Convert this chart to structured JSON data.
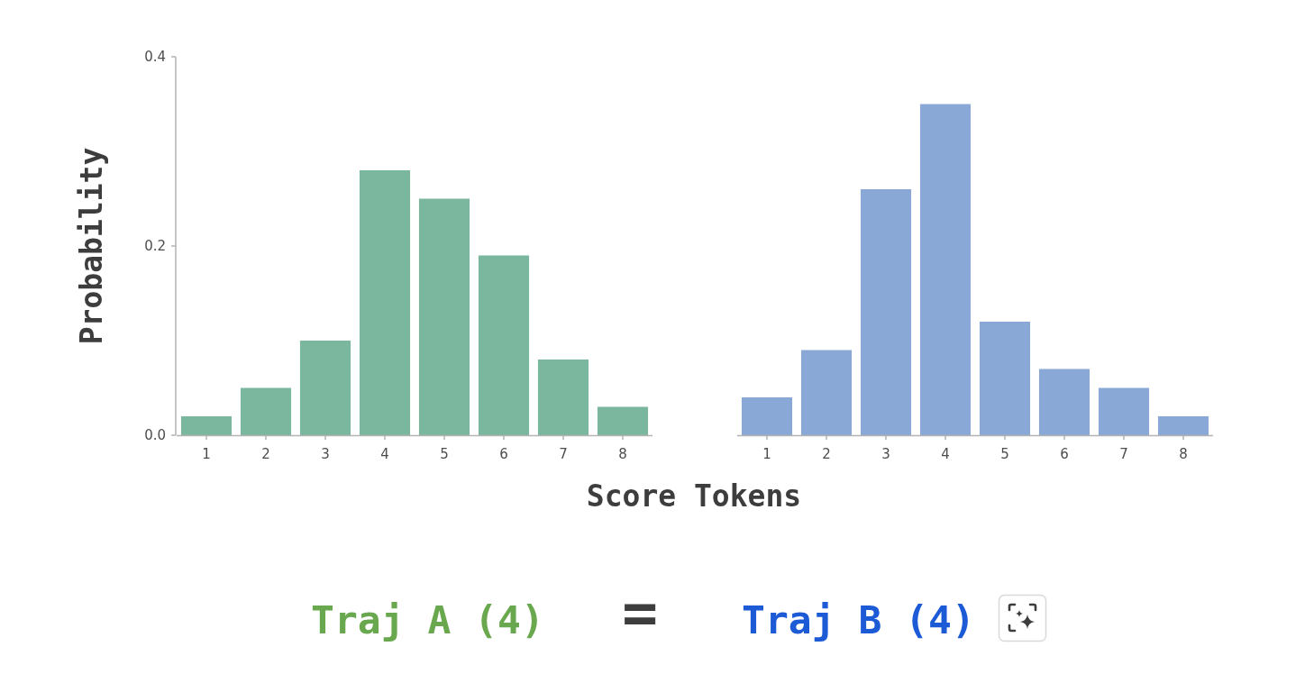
{
  "chart_data": [
    {
      "type": "bar",
      "categories": [
        "1",
        "2",
        "3",
        "4",
        "5",
        "6",
        "7",
        "8"
      ],
      "values": [
        0.02,
        0.05,
        0.1,
        0.28,
        0.25,
        0.19,
        0.08,
        0.03
      ],
      "color": "#7bb69e",
      "ylim": [
        0,
        0.4
      ],
      "yticks": [
        {
          "value": 0,
          "label": "0.0"
        },
        0.2,
        0.4
      ],
      "xlabel": "Score Tokens",
      "ylabel": "Probability",
      "annotations": [
        "Traj A (4)",
        "="
      ]
    },
    {
      "type": "bar",
      "categories": [
        "1",
        "2",
        "3",
        "4",
        "5",
        "6",
        "7",
        "8"
      ],
      "values": [
        0.04,
        0.09,
        0.26,
        0.35,
        0.12,
        0.07,
        0.05,
        0.02
      ],
      "color": "#8aa8d5",
      "ylim": [
        0,
        0.4
      ],
      "tick_labels": "x",
      "annotations": [
        "Traj B (4)"
      ]
    }
  ]
}
